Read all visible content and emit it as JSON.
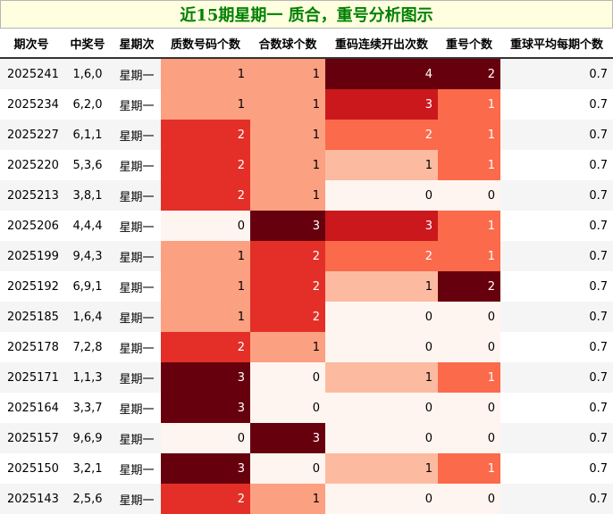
{
  "title": "近15期星期一 质合，重号分析图示",
  "columns": [
    "期次号",
    "中奖号",
    "星期次",
    "质数号码个数",
    "合数球个数",
    "重码连续开出次数",
    "重号个数",
    "重球平均每期个数"
  ],
  "rows": [
    {
      "issue": "2025241",
      "numbers": "1,6,0",
      "weekday": "星期一",
      "prime": 1,
      "composite": 1,
      "consecutive": 4,
      "repeat": 2,
      "avg": "0.7"
    },
    {
      "issue": "2025234",
      "numbers": "6,2,0",
      "weekday": "星期一",
      "prime": 1,
      "composite": 1,
      "consecutive": 3,
      "repeat": 1,
      "avg": "0.7"
    },
    {
      "issue": "2025227",
      "numbers": "6,1,1",
      "weekday": "星期一",
      "prime": 2,
      "composite": 1,
      "consecutive": 2,
      "repeat": 1,
      "avg": "0.7"
    },
    {
      "issue": "2025220",
      "numbers": "5,3,6",
      "weekday": "星期一",
      "prime": 2,
      "composite": 1,
      "consecutive": 1,
      "repeat": 1,
      "avg": "0.7"
    },
    {
      "issue": "2025213",
      "numbers": "3,8,1",
      "weekday": "星期一",
      "prime": 2,
      "composite": 1,
      "consecutive": 0,
      "repeat": 0,
      "avg": "0.7"
    },
    {
      "issue": "2025206",
      "numbers": "4,4,4",
      "weekday": "星期一",
      "prime": 0,
      "composite": 3,
      "consecutive": 3,
      "repeat": 1,
      "avg": "0.7"
    },
    {
      "issue": "2025199",
      "numbers": "9,4,3",
      "weekday": "星期一",
      "prime": 1,
      "composite": 2,
      "consecutive": 2,
      "repeat": 1,
      "avg": "0.7"
    },
    {
      "issue": "2025192",
      "numbers": "6,9,1",
      "weekday": "星期一",
      "prime": 1,
      "composite": 2,
      "consecutive": 1,
      "repeat": 2,
      "avg": "0.7"
    },
    {
      "issue": "2025185",
      "numbers": "1,6,4",
      "weekday": "星期一",
      "prime": 1,
      "composite": 2,
      "consecutive": 0,
      "repeat": 0,
      "avg": "0.7"
    },
    {
      "issue": "2025178",
      "numbers": "7,2,8",
      "weekday": "星期一",
      "prime": 2,
      "composite": 1,
      "consecutive": 0,
      "repeat": 0,
      "avg": "0.7"
    },
    {
      "issue": "2025171",
      "numbers": "1,1,3",
      "weekday": "星期一",
      "prime": 3,
      "composite": 0,
      "consecutive": 1,
      "repeat": 1,
      "avg": "0.7"
    },
    {
      "issue": "2025164",
      "numbers": "3,3,7",
      "weekday": "星期一",
      "prime": 3,
      "composite": 0,
      "consecutive": 0,
      "repeat": 0,
      "avg": "0.7"
    },
    {
      "issue": "2025157",
      "numbers": "9,6,9",
      "weekday": "星期一",
      "prime": 0,
      "composite": 3,
      "consecutive": 0,
      "repeat": 0,
      "avg": "0.7"
    },
    {
      "issue": "2025150",
      "numbers": "3,2,1",
      "weekday": "星期一",
      "prime": 3,
      "composite": 0,
      "consecutive": 1,
      "repeat": 1,
      "avg": "0.7"
    },
    {
      "issue": "2025143",
      "numbers": "2,5,6",
      "weekday": "星期一",
      "prime": 2,
      "composite": 1,
      "consecutive": 0,
      "repeat": 0,
      "avg": "0.7"
    }
  ],
  "colors": {
    "title_text": "#008000",
    "title_bg": "#ffffe0",
    "prime_scale": [
      "#fff5f0",
      "#fca082",
      "#e32f27",
      "#67000d"
    ],
    "composite_scale": [
      "#fff5f0",
      "#fca082",
      "#e32f27",
      "#67000d"
    ],
    "consecutive_scale": [
      "#fff5f0",
      "#fcbba1",
      "#fb6a4a",
      "#cb181d",
      "#67000d"
    ],
    "repeat_scale": [
      "#fff5f0",
      "#fb6a4a",
      "#67000d"
    ],
    "avg_bg": "#fff5f0"
  }
}
